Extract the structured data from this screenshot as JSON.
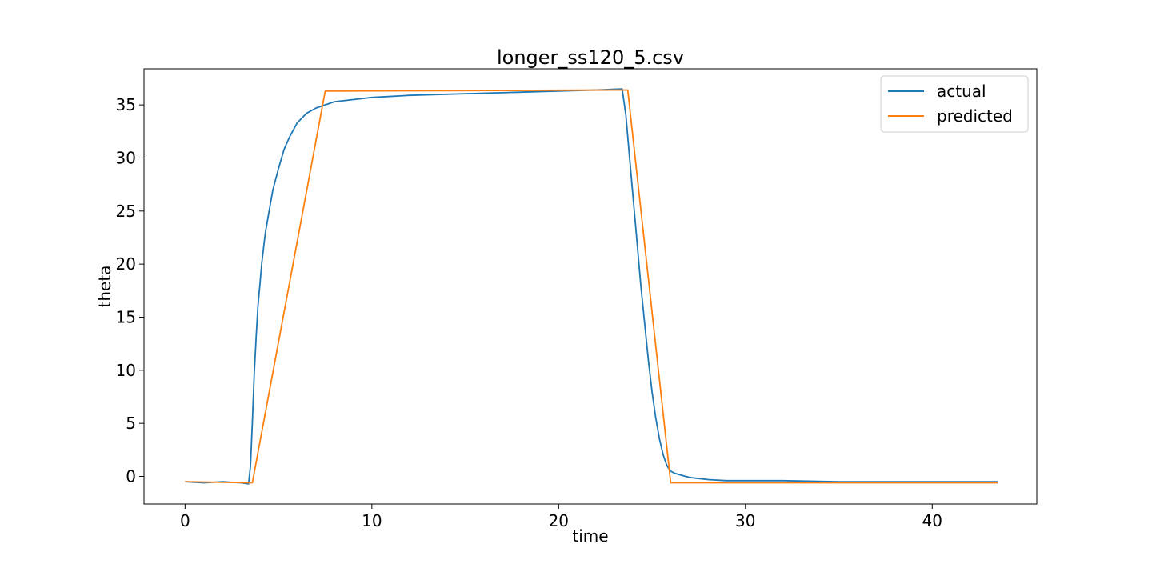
{
  "chart_data": {
    "type": "line",
    "title": "longer_ss120_5.csv",
    "xlabel": "time",
    "ylabel": "theta",
    "xlim": [
      -2.2,
      45.6
    ],
    "ylim": [
      -2.6,
      38.4
    ],
    "xticks": [
      0,
      10,
      20,
      30,
      40
    ],
    "yticks": [
      0,
      5,
      10,
      15,
      20,
      25,
      30,
      35
    ],
    "grid": false,
    "legend_position": "top-right",
    "series": [
      {
        "name": "actual",
        "color": "#1f77b4",
        "x": [
          0,
          1,
          2,
          3,
          3.4,
          3.5,
          3.6,
          3.7,
          3.8,
          3.9,
          4.0,
          4.1,
          4.2,
          4.3,
          4.5,
          4.7,
          5.0,
          5.3,
          5.6,
          6.0,
          6.5,
          7.0,
          7.5,
          8.0,
          9.0,
          10,
          12,
          14,
          16,
          18,
          20,
          22,
          23.4,
          23.6,
          23.8,
          24.0,
          24.2,
          24.4,
          24.6,
          24.8,
          25.0,
          25.2,
          25.4,
          25.6,
          25.8,
          26.0,
          26.2,
          26.6,
          27,
          28,
          29,
          30,
          32,
          35,
          38,
          40,
          42,
          43.5
        ],
        "y": [
          -0.5,
          -0.6,
          -0.5,
          -0.6,
          -0.7,
          1.0,
          5.0,
          9.5,
          13.0,
          16.0,
          18.0,
          20.0,
          21.5,
          23.0,
          25.0,
          27.0,
          29.0,
          30.8,
          32.0,
          33.3,
          34.2,
          34.7,
          35.0,
          35.3,
          35.5,
          35.7,
          35.9,
          36.0,
          36.1,
          36.2,
          36.3,
          36.4,
          36.5,
          34.0,
          30.0,
          26.0,
          22.0,
          18.0,
          14.5,
          11.0,
          8.0,
          5.5,
          3.5,
          2.0,
          1.0,
          0.5,
          0.3,
          0.1,
          -0.1,
          -0.3,
          -0.4,
          -0.4,
          -0.4,
          -0.5,
          -0.5,
          -0.5,
          -0.5,
          -0.5
        ]
      },
      {
        "name": "predicted",
        "color": "#ff7f0e",
        "x": [
          0,
          3.6,
          7.5,
          23.7,
          26.0,
          43.5
        ],
        "y": [
          -0.5,
          -0.6,
          36.3,
          36.4,
          -0.6,
          -0.6
        ]
      }
    ]
  }
}
